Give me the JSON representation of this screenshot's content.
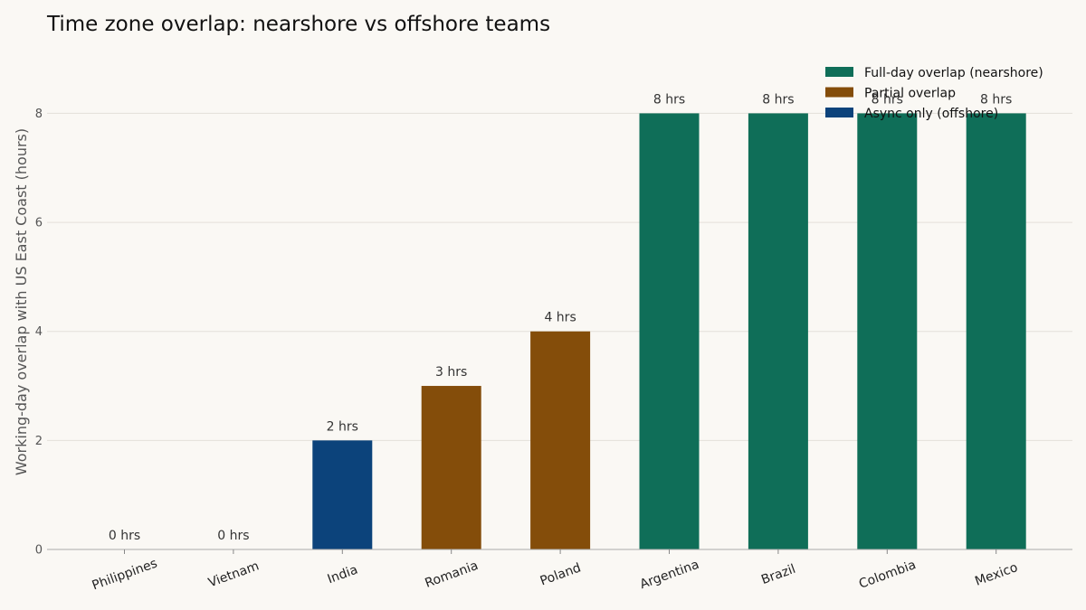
{
  "chart_data": {
    "type": "bar",
    "title": "Time zone overlap: nearshore vs offshore teams",
    "xlabel": "",
    "ylabel": "Working-day overlap with US East Coast (hours)",
    "ylim": [
      0,
      9.3
    ],
    "yticks": [
      0,
      2,
      4,
      6,
      8
    ],
    "grid": "y",
    "legend_position": "top-right",
    "categories": [
      "Philippines",
      "Vietnam",
      "India",
      "Romania",
      "Poland",
      "Argentina",
      "Brazil",
      "Colombia",
      "Mexico"
    ],
    "values": [
      0,
      0,
      2,
      3,
      4,
      8,
      8,
      8,
      8
    ],
    "data_labels": [
      "0 hrs",
      "0 hrs",
      "2 hrs",
      "3 hrs",
      "4 hrs",
      "8 hrs",
      "8 hrs",
      "8 hrs",
      "8 hrs"
    ],
    "bar_groups": [
      "async",
      "async",
      "async",
      "partial",
      "partial",
      "full",
      "full",
      "full",
      "full"
    ],
    "legend": [
      {
        "key": "full",
        "label": "Full-day overlap (nearshore)",
        "color": "#0f6e58"
      },
      {
        "key": "partial",
        "label": "Partial overlap",
        "color": "#844d0a"
      },
      {
        "key": "async",
        "label": "Async only (offshore)",
        "color": "#0c437b"
      }
    ]
  }
}
